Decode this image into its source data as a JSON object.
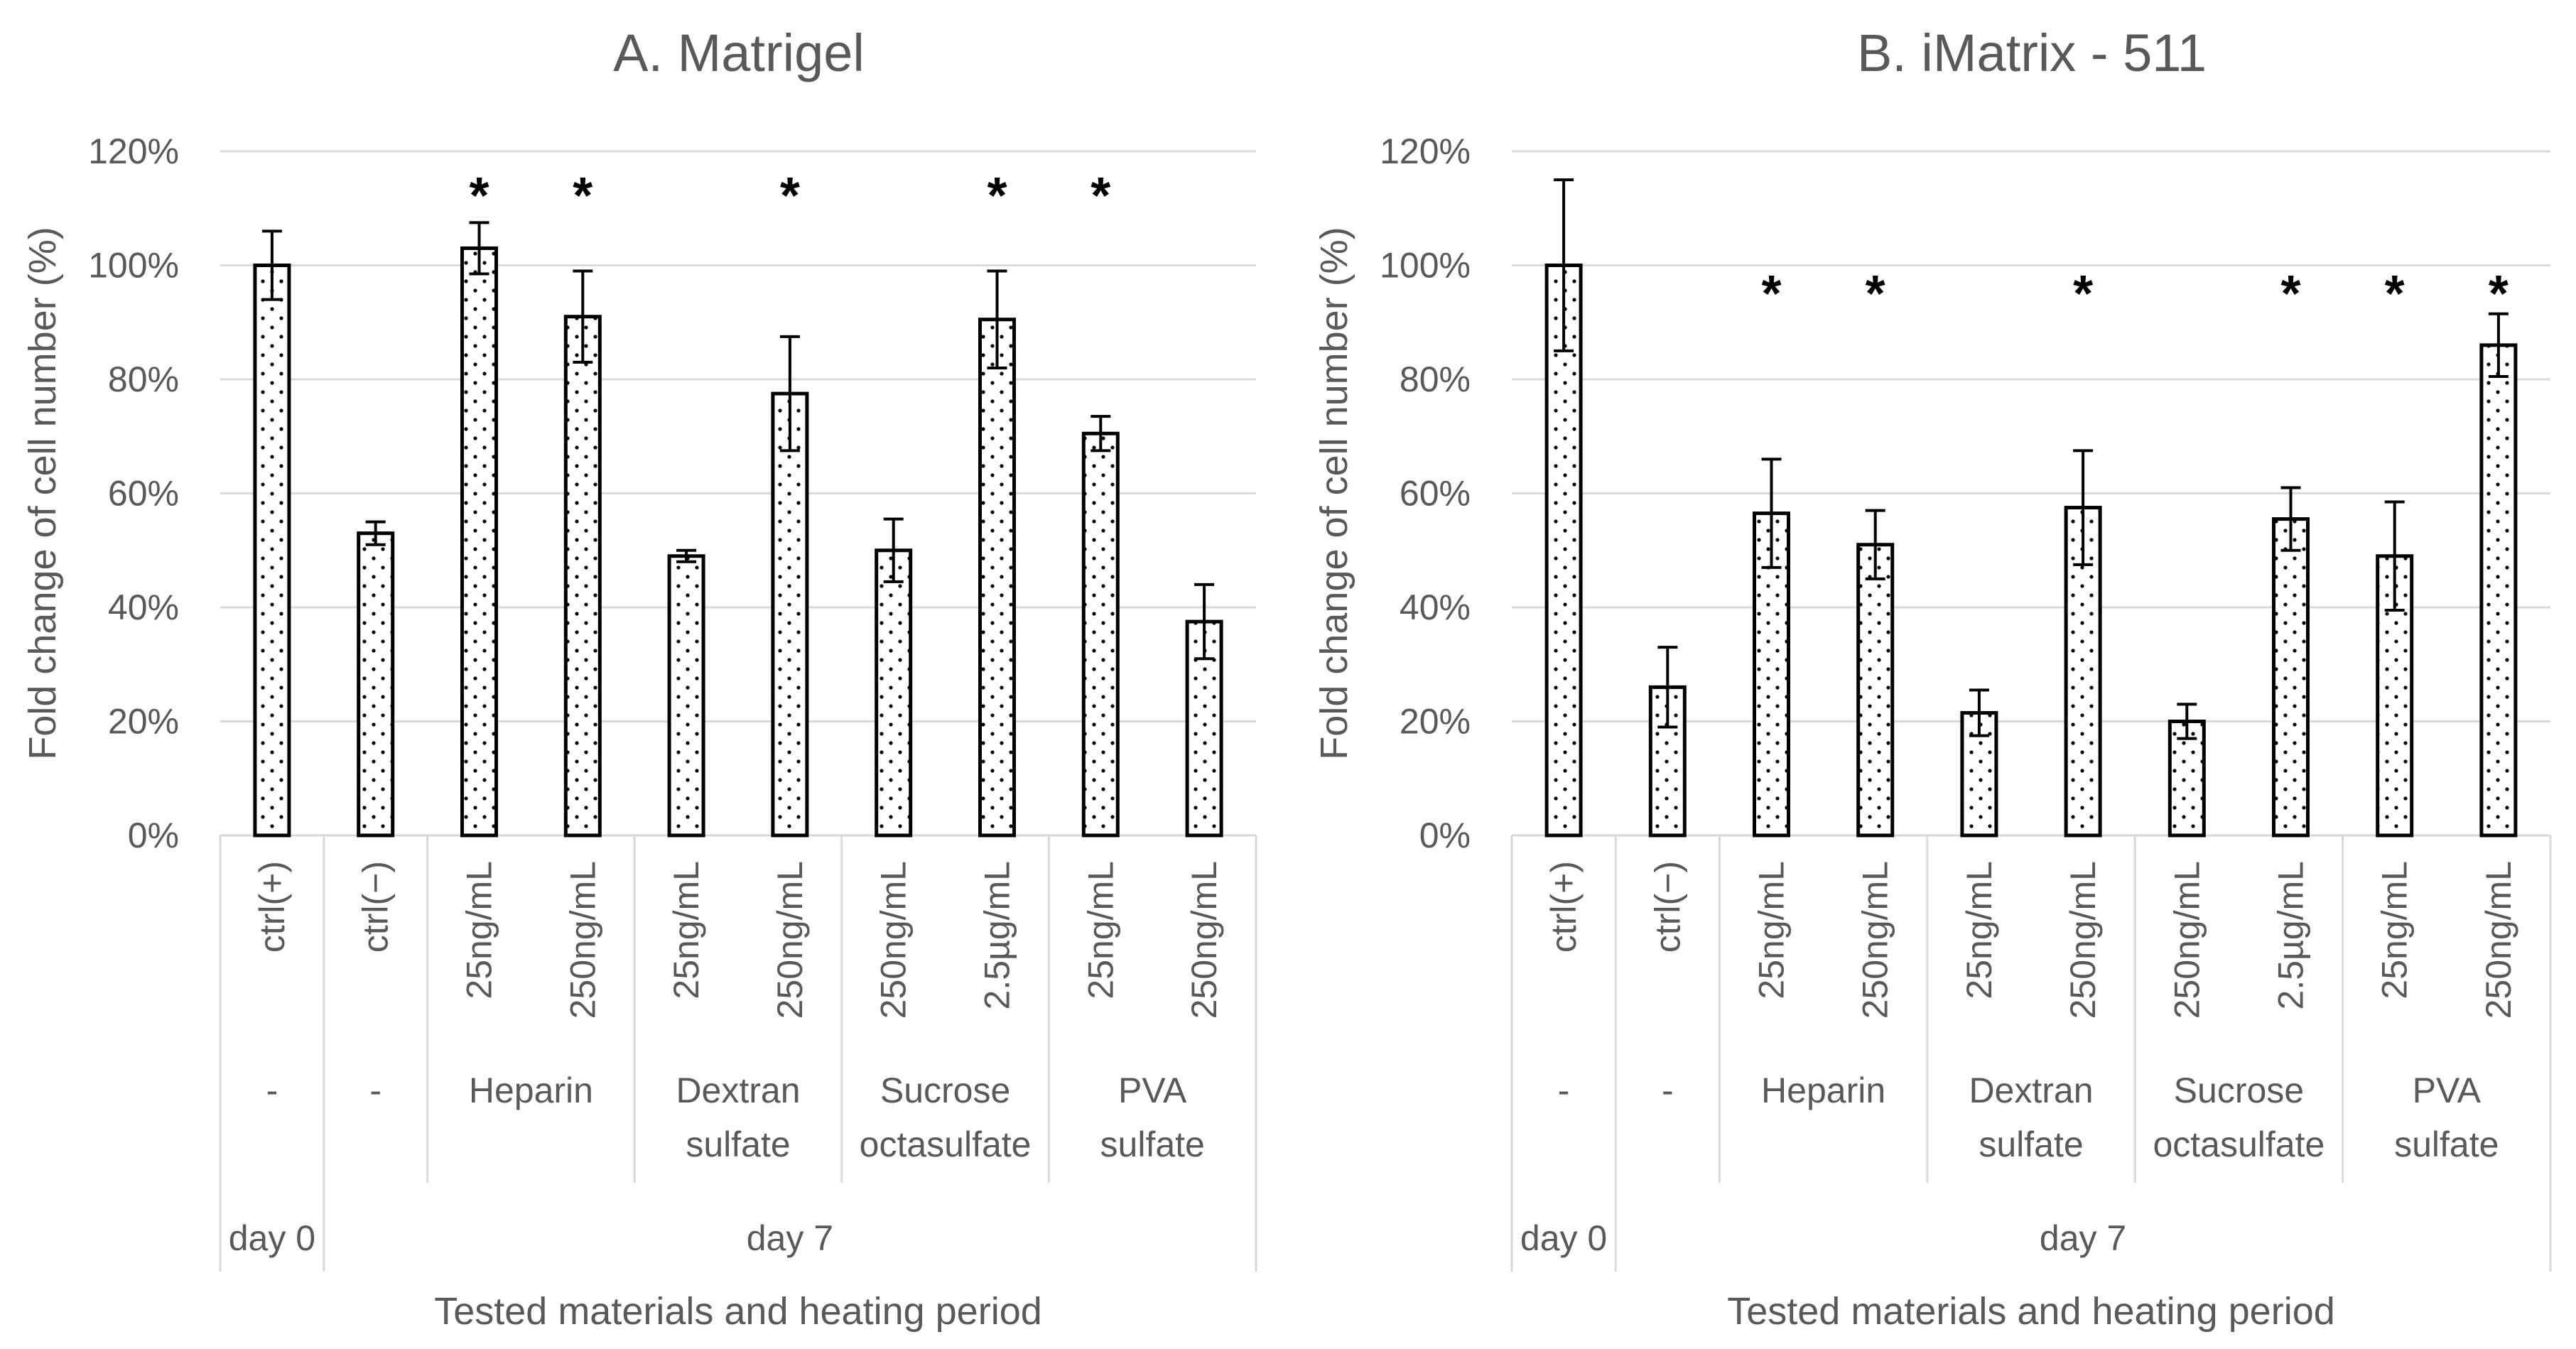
{
  "chart_data": [
    {
      "type": "bar",
      "title": "A. Matrigel",
      "ylabel": "Fold change of cell number (%)",
      "xlabel": "Tested materials and heating period",
      "ylim": [
        0,
        120
      ],
      "yticks": [
        "0%",
        "20%",
        "40%",
        "60%",
        "80%",
        "100%",
        "120%"
      ],
      "grid": true,
      "bar_pattern": "dotted",
      "categories": [
        "ctrl(+)",
        "ctrl(−)",
        "25ng/mL",
        "250ng/mL",
        "25ng/mL",
        "250ng/mL",
        "250ng/mL",
        "2.5µg/mL",
        "25ng/mL",
        "250ng/mL"
      ],
      "values": [
        100,
        53,
        103,
        91,
        49,
        77.5,
        50,
        90.5,
        70.5,
        37.5
      ],
      "errors": [
        6,
        2,
        4.5,
        8,
        1,
        10,
        5.5,
        8.5,
        3,
        6.5
      ],
      "significant": [
        false,
        false,
        true,
        true,
        false,
        true,
        false,
        true,
        true,
        false
      ],
      "material_groups": [
        {
          "label": "-",
          "span": 1
        },
        {
          "label": "-",
          "span": 1
        },
        {
          "label": "Heparin",
          "span": 2
        },
        {
          "label": "Dextran sulfate",
          "span": 2
        },
        {
          "label": "Sucrose octasulfate",
          "span": 2
        },
        {
          "label": "PVA sulfate",
          "span": 2
        }
      ],
      "period_groups": [
        {
          "label": "day 0",
          "span": 1
        },
        {
          "label": "day 7",
          "span": 9
        }
      ],
      "significance_marker": "*"
    },
    {
      "type": "bar",
      "title": "B. iMatrix - 511",
      "ylabel": "Fold change of cell number (%)",
      "xlabel": "Tested materials and heating period",
      "ylim": [
        0,
        120
      ],
      "yticks": [
        "0%",
        "20%",
        "40%",
        "60%",
        "80%",
        "100%",
        "120%"
      ],
      "grid": true,
      "bar_pattern": "dotted",
      "categories": [
        "ctrl(+)",
        "ctrl(−)",
        "25ng/mL",
        "250ng/mL",
        "25ng/mL",
        "250ng/mL",
        "250ng/mL",
        "2.5µg/mL",
        "25ng/mL",
        "250ng/mL"
      ],
      "values": [
        100,
        26,
        56.5,
        51,
        21.5,
        57.5,
        20,
        55.5,
        49,
        86
      ],
      "errors": [
        15,
        7,
        9.5,
        6,
        4,
        10,
        3,
        5.5,
        9.5,
        5.5
      ],
      "significant": [
        false,
        false,
        true,
        true,
        false,
        true,
        false,
        true,
        true,
        true
      ],
      "material_groups": [
        {
          "label": "-",
          "span": 1
        },
        {
          "label": "-",
          "span": 1
        },
        {
          "label": "Heparin",
          "span": 2
        },
        {
          "label": "Dextran sulfate",
          "span": 2
        },
        {
          "label": "Sucrose octasulfate",
          "span": 2
        },
        {
          "label": "PVA sulfate",
          "span": 2
        }
      ],
      "period_groups": [
        {
          "label": "day 0",
          "span": 1
        },
        {
          "label": "day 7",
          "span": 9
        }
      ],
      "significance_marker": "*"
    }
  ]
}
